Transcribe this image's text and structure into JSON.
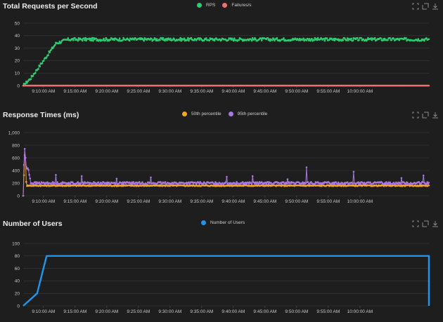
{
  "colors": {
    "background": "#1e1e1e",
    "grid": "#3a3a3a",
    "axis_text": "#c9c9c9",
    "rps": "#2ecc71",
    "failures": "#f07070",
    "p50": "#f5a623",
    "p95": "#a977e0",
    "users": "#1e96f0"
  },
  "toolbar_icons": [
    "zoom-in-icon",
    "zoom-reset-icon",
    "download-icon"
  ],
  "chart_data": [
    {
      "type": "line",
      "title": "Total Requests per Second",
      "x_ticks": [
        "9:10:00 AM",
        "9:15:00 AM",
        "9:20:00 AM",
        "9:25:00 AM",
        "9:30:00 AM",
        "9:35:00 AM",
        "9:40:00 AM",
        "9:45:00 AM",
        "9:50:00 AM",
        "9:55:00 AM",
        "10:00:00 AM"
      ],
      "x_range_minutes": [
        -3.2,
        60.9
      ],
      "ylim": [
        0,
        50
      ],
      "y_ticks": [
        "0",
        "10",
        "20",
        "30",
        "40",
        "50"
      ],
      "grid": true,
      "legend": "top-center",
      "series": [
        {
          "name": "RPS",
          "color": "#2ecc71",
          "x_minutes": [
            -3.2,
            -2.0,
            0.0,
            2.0,
            4.0,
            60.9
          ],
          "values": [
            0,
            6,
            20,
            34,
            37,
            37
          ],
          "noise": 1.2,
          "markers": true
        },
        {
          "name": "Failures/s",
          "color": "#f07070",
          "x_minutes": [
            -3.2,
            60.9
          ],
          "values": [
            0,
            0
          ],
          "noise": 0,
          "markers": true
        }
      ]
    },
    {
      "type": "line",
      "title": "Response Times (ms)",
      "x_ticks": [
        "9:10:00 AM",
        "9:15:00 AM",
        "9:20:00 AM",
        "9:25:00 AM",
        "9:30:00 AM",
        "9:35:00 AM",
        "9:40:00 AM",
        "9:45:00 AM",
        "9:50:00 AM",
        "9:55:00 AM",
        "10:00:00 AM"
      ],
      "x_range_minutes": [
        -3.2,
        60.9
      ],
      "ylim": [
        0,
        1000
      ],
      "y_ticks": [
        "0",
        "200",
        "400",
        "600",
        "800",
        "1,000"
      ],
      "grid": true,
      "legend": "top-center",
      "series": [
        {
          "name": "50th percentile",
          "color": "#f5a623",
          "x_minutes": [
            -3.2,
            -2.9,
            -2.7,
            -2.3,
            60.9
          ],
          "values": [
            0,
            800,
            160,
            160,
            160
          ],
          "noise": 8,
          "markers": true
        },
        {
          "name": "95th percentile",
          "color": "#a977e0",
          "x_minutes": [
            -3.2,
            -3.0,
            -2.7,
            -2.4,
            -2.0,
            60.9
          ],
          "values": [
            0,
            800,
            420,
            440,
            200,
            200
          ],
          "noise": 18,
          "markers": true,
          "spikes": [
            {
              "x": 2.0,
              "v": 330
            },
            {
              "x": 6.0,
              "v": 310
            },
            {
              "x": 11.5,
              "v": 270
            },
            {
              "x": 17.0,
              "v": 290
            },
            {
              "x": 29.0,
              "v": 300
            },
            {
              "x": 33.0,
              "v": 310
            },
            {
              "x": 38.5,
              "v": 260
            },
            {
              "x": 41.5,
              "v": 450
            },
            {
              "x": 49.0,
              "v": 380
            },
            {
              "x": 56.5,
              "v": 280
            },
            {
              "x": 60.0,
              "v": 320
            }
          ]
        }
      ]
    },
    {
      "type": "line",
      "title": "Number of Users",
      "x_ticks": [
        "9:10:00 AM",
        "9:15:00 AM",
        "9:20:00 AM",
        "9:25:00 AM",
        "9:30:00 AM",
        "9:35:00 AM",
        "9:40:00 AM",
        "9:45:00 AM",
        "9:50:00 AM",
        "9:55:00 AM",
        "10:00:00 AM"
      ],
      "x_range_minutes": [
        -3.2,
        60.9
      ],
      "ylim": [
        0,
        100
      ],
      "y_ticks": [
        "0",
        "20",
        "40",
        "60",
        "80",
        "100"
      ],
      "grid": true,
      "legend": "top-center",
      "series": [
        {
          "name": "Number of Users",
          "color": "#1e96f0",
          "x_minutes": [
            -3.2,
            -1.0,
            0.5,
            60.9,
            60.9
          ],
          "values": [
            0,
            20,
            80,
            80,
            0
          ],
          "noise": 0,
          "markers": false
        }
      ]
    }
  ]
}
